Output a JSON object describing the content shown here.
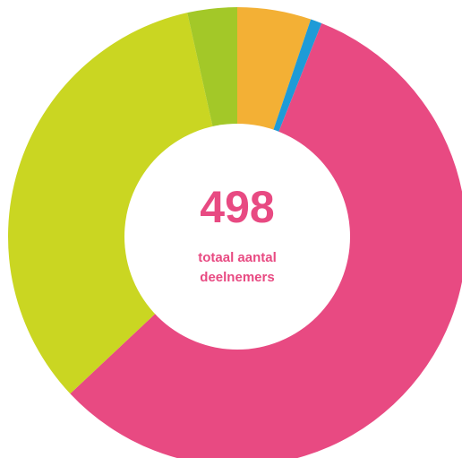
{
  "chart_data": {
    "type": "pie",
    "style": "donut",
    "start_angle_deg": 0,
    "direction": "clockwise",
    "slices": [
      {
        "value": 5.2,
        "color": "#F3B035"
      },
      {
        "value": 0.8,
        "color": "#1E9BD7"
      },
      {
        "value": 57.0,
        "color": "#E84A82"
      },
      {
        "value": 33.5,
        "color": "#CAD622"
      },
      {
        "value": 3.5,
        "color": "#A3C828"
      }
    ],
    "center_total": "498",
    "center_caption": [
      "totaal aantal",
      "deelnemers"
    ],
    "center_text_color": "#E84A82",
    "hole_color": "#FFFFFF"
  }
}
